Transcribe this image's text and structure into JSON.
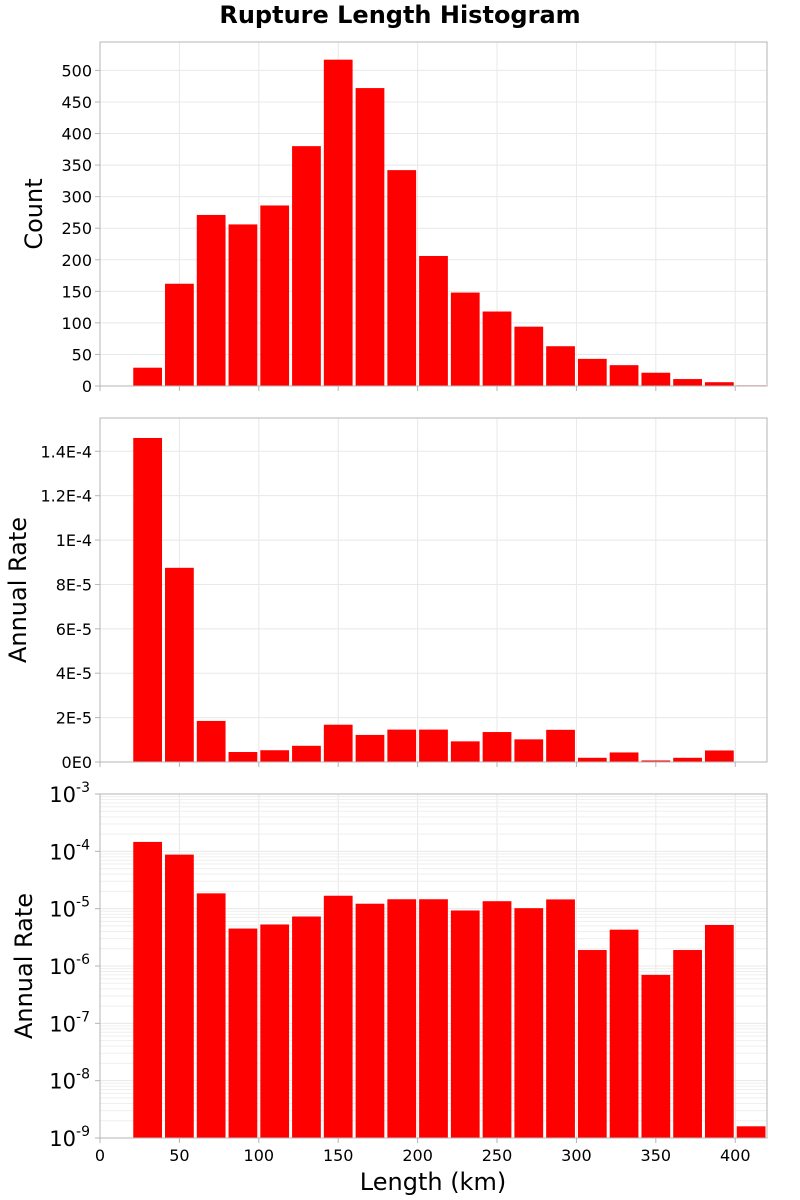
{
  "chart_data": {
    "type": "bar",
    "title": "Rupture Length Histogram",
    "xlabel": "Length (km)",
    "xlim": [
      0,
      420
    ],
    "xticks": [
      0,
      50,
      100,
      150,
      200,
      250,
      300,
      350,
      400
    ],
    "bin_width": 20,
    "bar_color": "#ff0000",
    "grid": true,
    "panels": [
      {
        "ylabel": "Count",
        "yscale": "linear",
        "ylim": [
          0,
          545
        ],
        "yticks": [
          0,
          50,
          100,
          150,
          200,
          250,
          300,
          350,
          400,
          450,
          500
        ],
        "ytick_labels": [
          "0",
          "50",
          "100",
          "150",
          "200",
          "250",
          "300",
          "350",
          "400",
          "450",
          "500"
        ],
        "x": [
          30,
          50,
          70,
          90,
          110,
          130,
          150,
          170,
          190,
          210,
          230,
          250,
          270,
          290,
          310,
          330,
          350,
          370,
          390,
          410
        ],
        "values": [
          29,
          162,
          271,
          256,
          286,
          380,
          517,
          472,
          342,
          206,
          148,
          118,
          94,
          63,
          43,
          33,
          21,
          11,
          6,
          1
        ]
      },
      {
        "ylabel": "Annual Rate",
        "yscale": "linear",
        "ylim": [
          0,
          0.000155
        ],
        "yticks": [
          0,
          2e-05,
          4e-05,
          6e-05,
          8e-05,
          0.0001,
          0.00012,
          0.00014
        ],
        "ytick_labels": [
          "0E0",
          "2E-5",
          "4E-5",
          "6E-5",
          "8E-5",
          "1E-4",
          "1.2E-4",
          "1.4E-4"
        ],
        "x": [
          30,
          50,
          70,
          90,
          110,
          130,
          150,
          170,
          190,
          210,
          230,
          250,
          270,
          290,
          310,
          330,
          350,
          370,
          390,
          410
        ],
        "values": [
          0.000146,
          8.75e-05,
          1.85e-05,
          4.5e-06,
          5.3e-06,
          7.3e-06,
          1.68e-05,
          1.22e-05,
          1.46e-05,
          1.46e-05,
          9.3e-06,
          1.35e-05,
          1.02e-05,
          1.45e-05,
          1.9e-06,
          4.3e-06,
          7e-07,
          1.9e-06,
          5.2e-06,
          1.6e-09
        ]
      },
      {
        "ylabel": "Annual Rate",
        "yscale": "log",
        "ylim": [
          1e-09,
          0.001
        ],
        "ytick_exponents": [
          -9,
          -8,
          -7,
          -6,
          -5,
          -4,
          -3
        ],
        "ytick_base": "10",
        "x": [
          30,
          50,
          70,
          90,
          110,
          130,
          150,
          170,
          190,
          210,
          230,
          250,
          270,
          290,
          310,
          330,
          350,
          370,
          390,
          410
        ],
        "values": [
          0.000146,
          8.75e-05,
          1.85e-05,
          4.5e-06,
          5.3e-06,
          7.3e-06,
          1.68e-05,
          1.22e-05,
          1.46e-05,
          1.46e-05,
          9.3e-06,
          1.35e-05,
          1.02e-05,
          1.45e-05,
          1.9e-06,
          4.3e-06,
          7e-07,
          1.9e-06,
          5.2e-06,
          1.6e-09
        ]
      }
    ]
  }
}
